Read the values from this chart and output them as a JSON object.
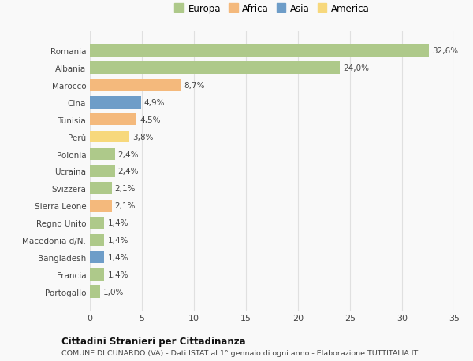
{
  "categories": [
    "Romania",
    "Albania",
    "Marocco",
    "Cina",
    "Tunisia",
    "Perù",
    "Polonia",
    "Ucraina",
    "Svizzera",
    "Sierra Leone",
    "Regno Unito",
    "Macedonia d/N.",
    "Bangladesh",
    "Francia",
    "Portogallo"
  ],
  "values": [
    32.6,
    24.0,
    8.7,
    4.9,
    4.5,
    3.8,
    2.4,
    2.4,
    2.1,
    2.1,
    1.4,
    1.4,
    1.4,
    1.4,
    1.0
  ],
  "labels": [
    "32,6%",
    "24,0%",
    "8,7%",
    "4,9%",
    "4,5%",
    "3,8%",
    "2,4%",
    "2,4%",
    "2,1%",
    "2,1%",
    "1,4%",
    "1,4%",
    "1,4%",
    "1,4%",
    "1,0%"
  ],
  "colors": [
    "#aec98a",
    "#aec98a",
    "#f4b97c",
    "#6e9dc8",
    "#f4b97c",
    "#f7d87c",
    "#aec98a",
    "#aec98a",
    "#aec98a",
    "#f4b97c",
    "#aec98a",
    "#aec98a",
    "#6e9dc8",
    "#aec98a",
    "#aec98a"
  ],
  "legend_labels": [
    "Europa",
    "Africa",
    "Asia",
    "America"
  ],
  "legend_colors": [
    "#aec98a",
    "#f4b97c",
    "#6e9dc8",
    "#f7d87c"
  ],
  "title": "Cittadini Stranieri per Cittadinanza",
  "subtitle": "COMUNE DI CUNARDO (VA) - Dati ISTAT al 1° gennaio di ogni anno - Elaborazione TUTTITALIA.IT",
  "xlim": [
    0,
    35
  ],
  "xticks": [
    0,
    5,
    10,
    15,
    20,
    25,
    30,
    35
  ],
  "background_color": "#f9f9f9",
  "grid_color": "#e0e0e0",
  "bar_height": 0.7
}
